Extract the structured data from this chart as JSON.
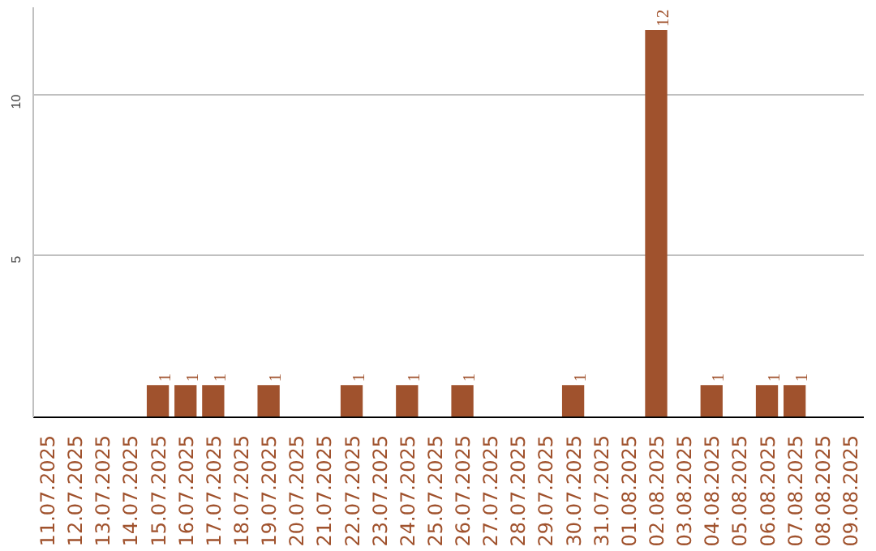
{
  "chart_data": {
    "type": "bar",
    "categories": [
      "11.07.2025",
      "12.07.2025",
      "13.07.2025",
      "14.07.2025",
      "15.07.2025",
      "16.07.2025",
      "17.07.2025",
      "18.07.2025",
      "19.07.2025",
      "20.07.2025",
      "21.07.2025",
      "22.07.2025",
      "23.07.2025",
      "24.07.2025",
      "25.07.2025",
      "26.07.2025",
      "27.07.2025",
      "28.07.2025",
      "29.07.2025",
      "30.07.2025",
      "31.07.2025",
      "01.08.2025",
      "02.08.2025",
      "03.08.2025",
      "04.08.2025",
      "05.08.2025",
      "06.08.2025",
      "07.08.2025",
      "08.08.2025",
      "09.08.2025"
    ],
    "values": [
      0,
      0,
      0,
      0,
      1,
      1,
      1,
      0,
      1,
      0,
      0,
      1,
      0,
      1,
      0,
      1,
      0,
      0,
      0,
      1,
      0,
      0,
      12,
      0,
      1,
      0,
      1,
      1,
      0,
      0
    ],
    "value_labels": [
      null,
      null,
      null,
      null,
      "1",
      "1",
      "1",
      null,
      "1",
      null,
      null,
      "1",
      null,
      "1",
      null,
      "1",
      null,
      null,
      null,
      "1",
      null,
      null,
      "12",
      null,
      "1",
      null,
      "1",
      "1",
      null,
      null
    ],
    "color": "#a0522d",
    "ylim": [
      0,
      12.7
    ],
    "yticks": [
      5,
      10
    ],
    "grid": "y"
  }
}
